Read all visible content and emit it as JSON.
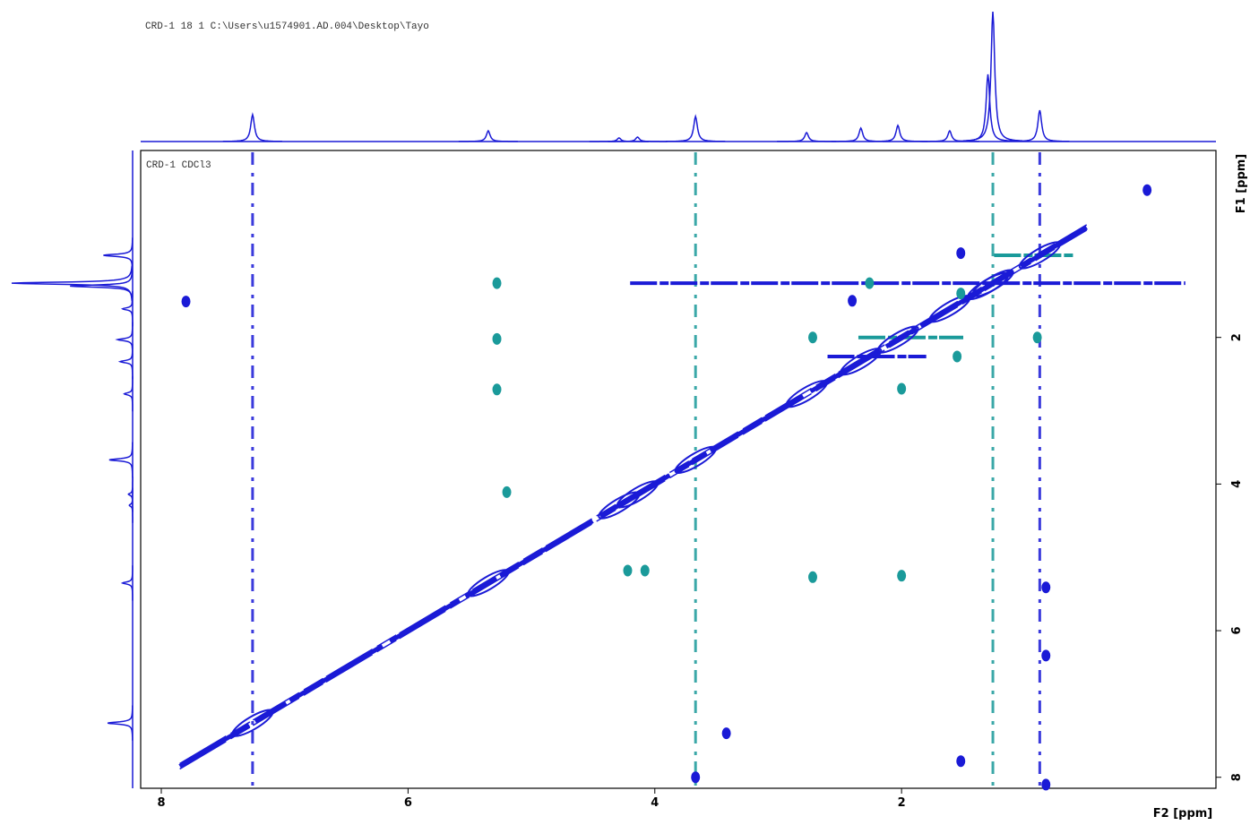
{
  "chart_data": {
    "type": "contour",
    "title": "CRD-1  18  1  C:\\Users\\u1574901.AD.004\\Desktop\\Tayo",
    "subtitle": "CRD-1 CDCl3",
    "x_label": "F2 [ppm]",
    "y_label": "F1 [ppm]",
    "xlim": [
      8.167,
      -0.548
    ],
    "ylim": [
      -0.55,
      8.15
    ],
    "xticks": [
      8,
      6,
      4,
      2
    ],
    "yticks": [
      2,
      4,
      6,
      8
    ],
    "projection_color": "#1a1ad6",
    "peaks_1d": {
      "ppm": [
        7.26,
        5.35,
        4.29,
        4.14,
        3.67,
        2.77,
        2.33,
        2.03,
        1.61,
        1.3,
        1.26,
        0.88
      ],
      "intensity": [
        30,
        12,
        4,
        5,
        28,
        10,
        15,
        18,
        12,
        75,
        145,
        35
      ]
    },
    "diagonal": [
      7.85,
      0.5
    ],
    "diagonal_color": "#1a1ad6",
    "series": [
      {
        "color": "#1a1ad6",
        "f2": [
          7.8,
          2.4,
          1.52,
          1.52,
          0.83,
          0.83,
          0.83,
          0.01,
          3.67,
          3.42
        ],
        "f1": [
          1.51,
          1.5,
          0.85,
          7.78,
          5.41,
          6.34,
          8.1,
          -0.01,
          8.0,
          7.4
        ]
      },
      {
        "color": "#1a9a9a",
        "f2": [
          5.28,
          5.28,
          5.28,
          5.2,
          4.22,
          4.08,
          2.72,
          2.0,
          2.72,
          2.0,
          2.26,
          1.55,
          0.9,
          1.52
        ],
        "f1": [
          1.26,
          2.02,
          2.71,
          4.11,
          5.18,
          5.18,
          2.0,
          2.7,
          5.27,
          5.25,
          1.26,
          2.26,
          2.0,
          1.4
        ]
      }
    ],
    "vertical_streaks": [
      {
        "f2": 7.26,
        "color": "#1a1ad6"
      },
      {
        "f2": 3.67,
        "color": "#1a9a9a"
      },
      {
        "f2": 1.26,
        "color": "#1a9a9a"
      },
      {
        "f2": 0.88,
        "color": "#1a1ad6"
      }
    ],
    "horizontal_streaks": [
      {
        "f1": 1.26,
        "f2_from": 4.2,
        "f2_to": -0.3,
        "color": "#1a1ad6"
      },
      {
        "f1": 0.88,
        "f2_from": 1.25,
        "f2_to": 0.6,
        "color": "#1a9a9a"
      },
      {
        "f1": 2.0,
        "f2_from": 2.35,
        "f2_to": 1.5,
        "color": "#1a9a9a"
      },
      {
        "f1": 2.26,
        "f2_from": 2.6,
        "f2_to": 1.8,
        "color": "#1a1ad6"
      }
    ]
  }
}
